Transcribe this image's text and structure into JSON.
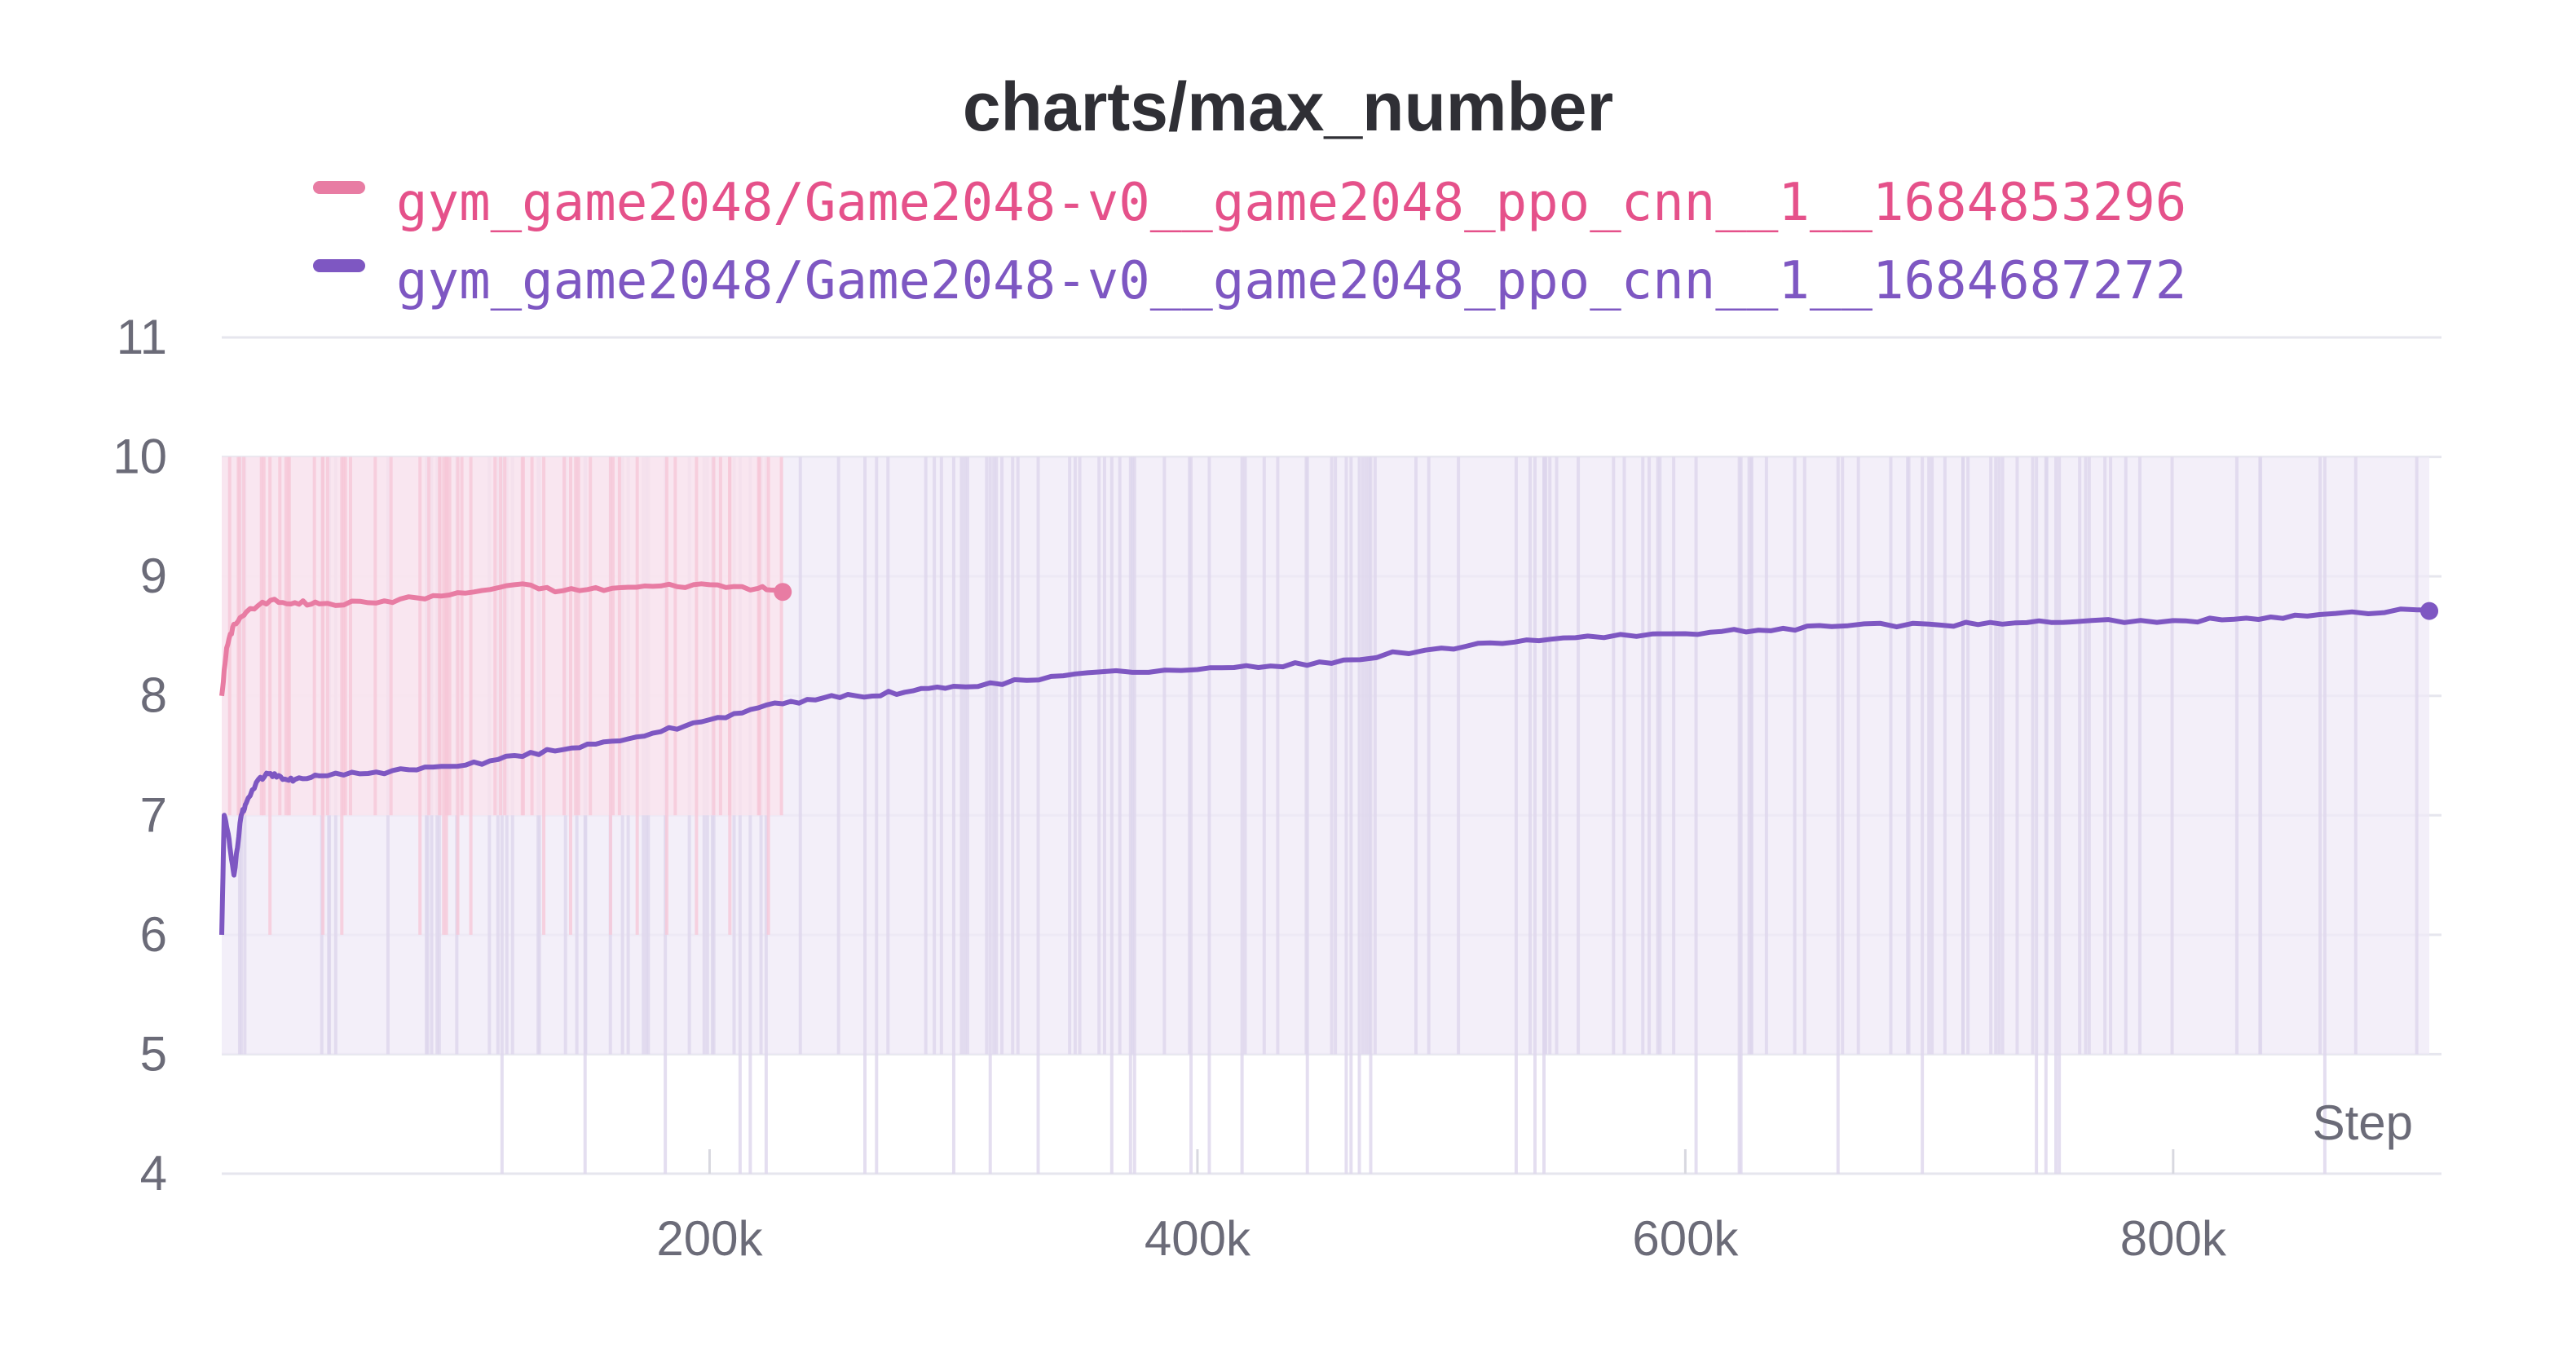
{
  "chart_data": {
    "type": "line",
    "title": "charts/max_number",
    "xlabel": "Step",
    "ylabel": "",
    "xlim": [
      0,
      910000
    ],
    "ylim": [
      4,
      11
    ],
    "x_ticks": [
      200000,
      400000,
      600000,
      800000
    ],
    "x_tick_labels": [
      "200k",
      "400k",
      "600k",
      "800k"
    ],
    "y_ticks": [
      4,
      5,
      6,
      7,
      8,
      9,
      10,
      11
    ],
    "y_tick_labels": [
      "4",
      "5",
      "6",
      "7",
      "8",
      "9",
      "10",
      "11"
    ],
    "grid": true,
    "legend_position": "top-center",
    "series": [
      {
        "name": "gym_game2048/Game2048-v0__game2048_ppo_cnn__1__1684853296",
        "color": "#e5518a",
        "line_color": "#e87ca3",
        "raw_min": 7,
        "raw_max": 10,
        "x": [
          0,
          2000,
          5000,
          10000,
          20000,
          30000,
          40000,
          60000,
          80000,
          100000,
          120000,
          140000,
          160000,
          180000,
          200000,
          220000,
          230000
        ],
        "values": [
          8.0,
          8.4,
          8.6,
          8.7,
          8.8,
          8.78,
          8.77,
          8.78,
          8.82,
          8.86,
          8.93,
          8.88,
          8.9,
          8.92,
          8.93,
          8.9,
          8.87
        ]
      },
      {
        "name": "gym_game2048/Game2048-v0__game2048_ppo_cnn__1__1684687272",
        "color": "#7e57c2",
        "line_color": "#7e57c2",
        "raw_min": 5,
        "raw_max": 10,
        "x": [
          0,
          1000,
          3000,
          5000,
          8000,
          10000,
          15000,
          20000,
          25000,
          30000,
          40000,
          60000,
          80000,
          100000,
          120000,
          140000,
          160000,
          180000,
          200000,
          220000,
          240000,
          260000,
          280000,
          300000,
          330000,
          360000,
          400000,
          430000,
          460000,
          500000,
          530000,
          560000,
          600000,
          630000,
          660000,
          700000,
          730000,
          760000,
          800000,
          830000,
          860000,
          900000,
          905000
        ],
        "values": [
          6.0,
          7.0,
          6.8,
          6.5,
          7.0,
          7.1,
          7.3,
          7.35,
          7.3,
          7.3,
          7.33,
          7.35,
          7.38,
          7.42,
          7.5,
          7.55,
          7.62,
          7.7,
          7.8,
          7.9,
          7.97,
          8.0,
          8.03,
          8.08,
          8.13,
          8.2,
          8.22,
          8.25,
          8.3,
          8.4,
          8.45,
          8.5,
          8.52,
          8.55,
          8.58,
          8.6,
          8.6,
          8.62,
          8.63,
          8.65,
          8.68,
          8.72,
          8.71
        ]
      }
    ]
  }
}
